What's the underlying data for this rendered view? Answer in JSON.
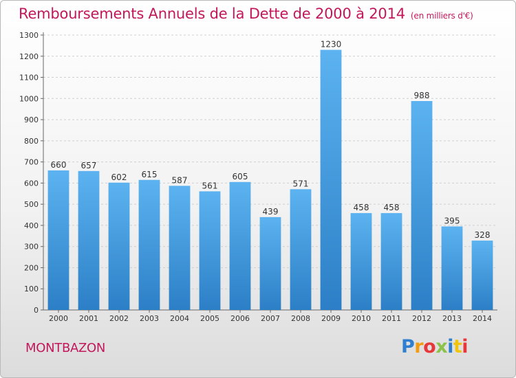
{
  "chart_data": {
    "type": "bar",
    "title": "Remboursements Annuels de la Dette de 2000 à 2014",
    "unit_note": "(en milliers d'€)",
    "categories": [
      "2000",
      "2001",
      "2002",
      "2003",
      "2004",
      "2005",
      "2006",
      "2007",
      "2008",
      "2009",
      "2010",
      "2011",
      "2012",
      "2013",
      "2014"
    ],
    "values": [
      660,
      657,
      602,
      615,
      587,
      561,
      605,
      439,
      571,
      1230,
      458,
      458,
      988,
      395,
      328
    ],
    "ylim": [
      0,
      1300
    ],
    "yticks": [
      0,
      100,
      200,
      300,
      400,
      500,
      600,
      700,
      800,
      900,
      1000,
      1100,
      1200,
      1300
    ],
    "grid": true,
    "bar_color": "#4aa3e8",
    "bar_color_dark": "#2a7fc8"
  },
  "footer": {
    "commune": "MONTBAZON",
    "logo": [
      "P",
      "r",
      "o",
      "x",
      "i",
      "t",
      "i"
    ]
  }
}
